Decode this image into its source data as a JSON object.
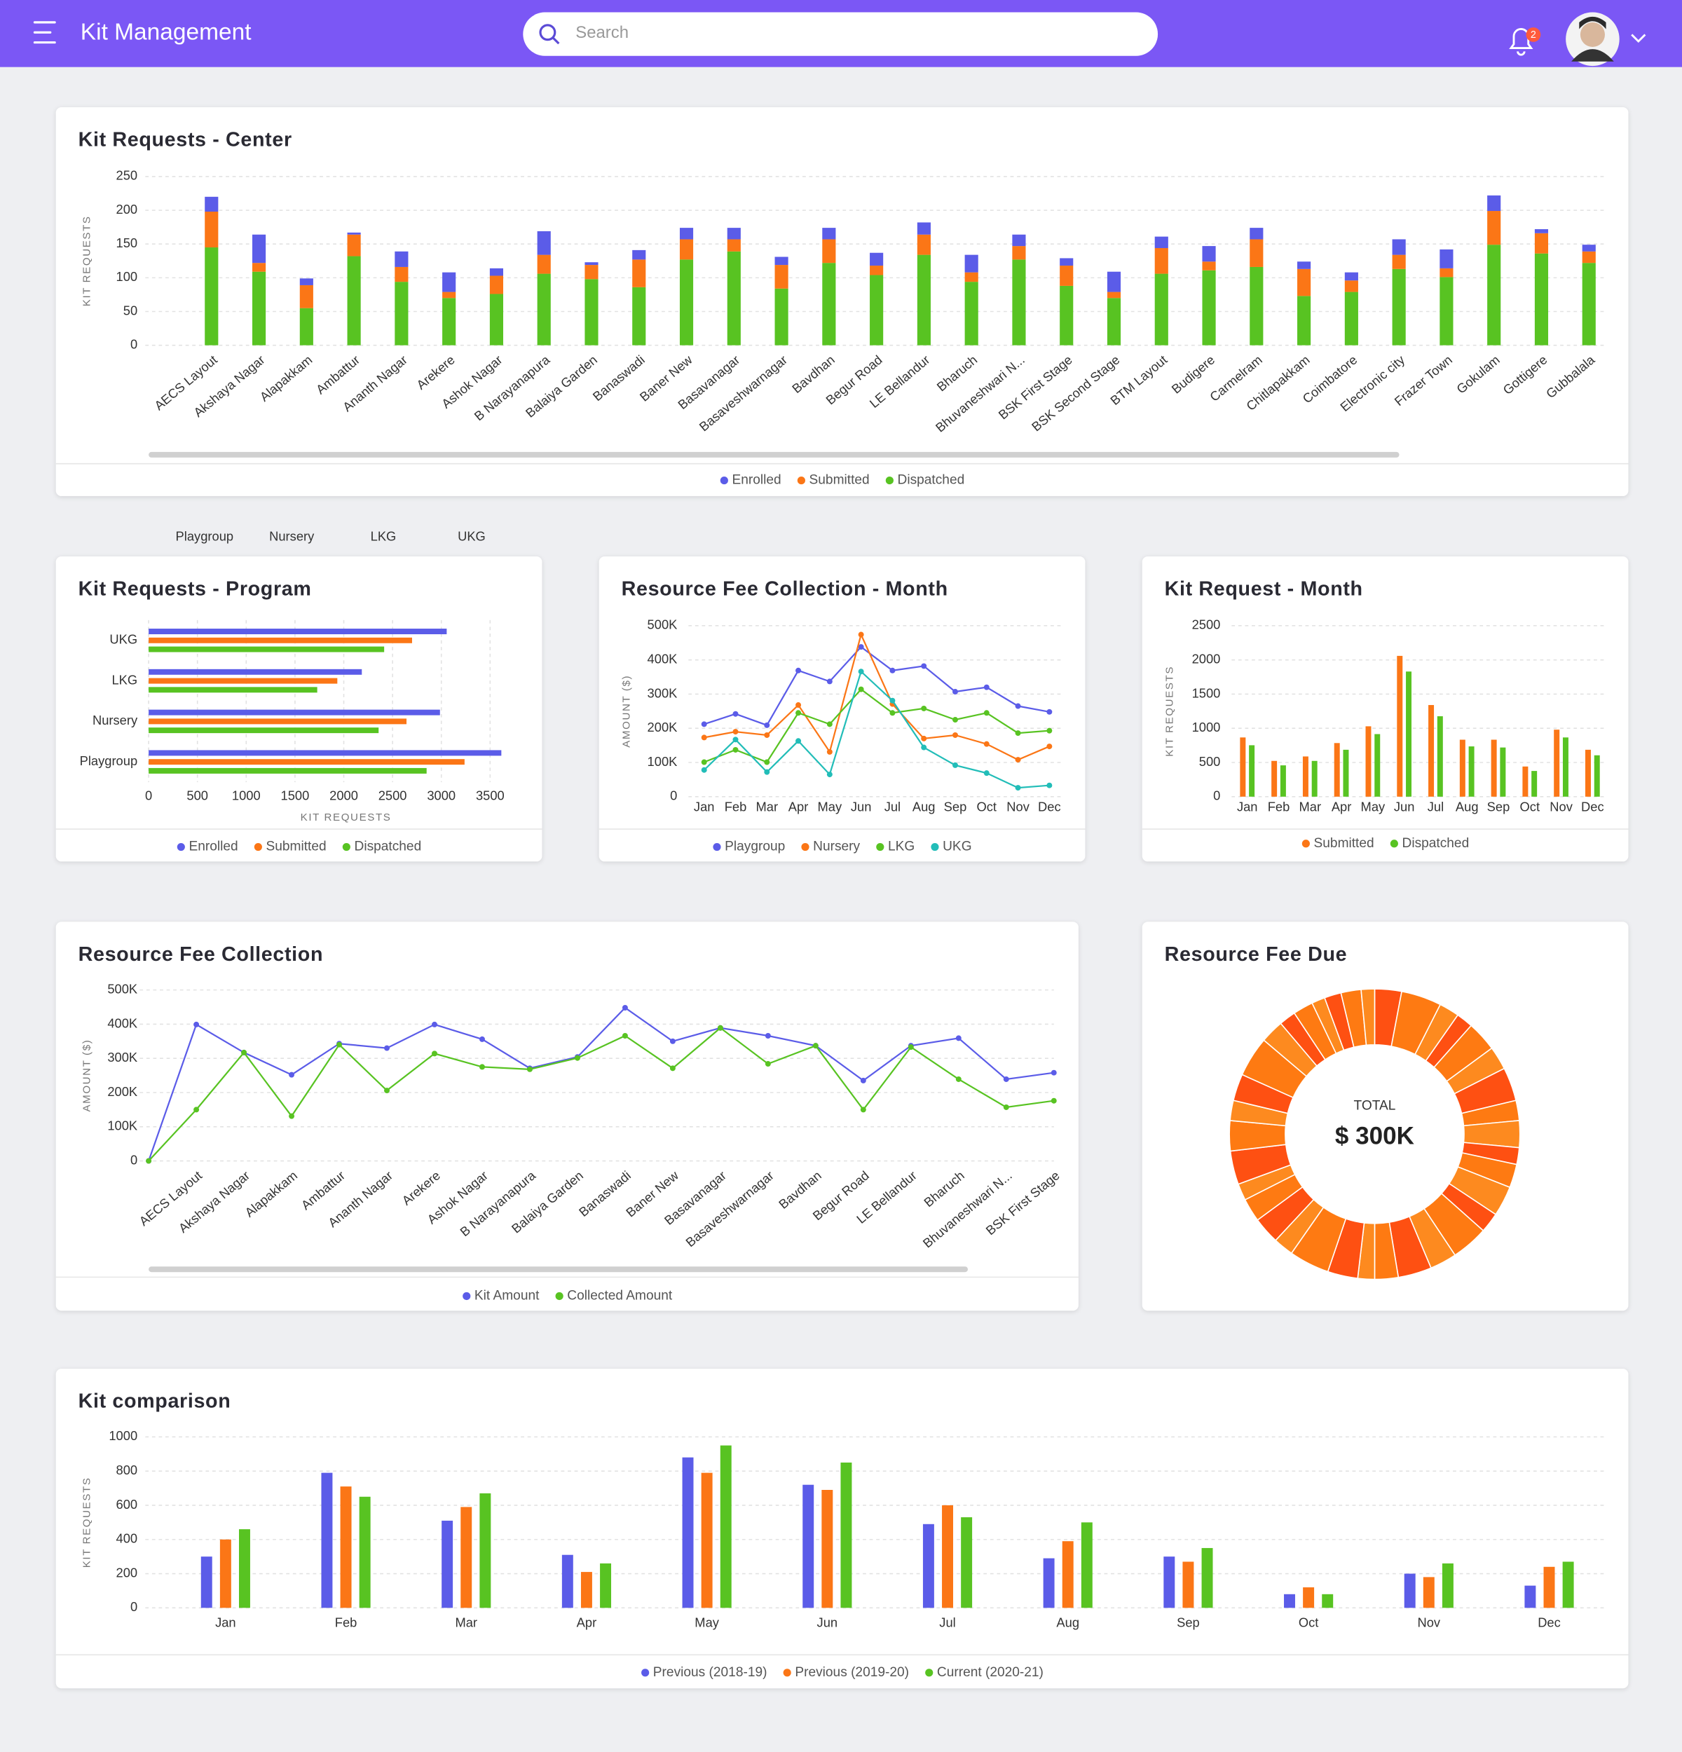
{
  "header": {
    "title": "Kit Management",
    "search_placeholder": "Search",
    "notification_count": 2
  },
  "stray_labels": [
    "Playgroup",
    "Nursery",
    "LKG",
    "UKG"
  ],
  "chart_data": [
    {
      "type": "stacked_bar",
      "title": "Kit Requests - Center",
      "ylabel": "KIT REQUESTS",
      "categories": [
        "AECS Layout",
        "Akshaya Nagar",
        "Alapakkam",
        "Ambattur",
        "Ananth Nagar",
        "Arekere",
        "Ashok Nagar",
        "B Narayanapura",
        "Balaiya Garden",
        "Banaswadi",
        "Baner New",
        "Basavanagar",
        "Basaveshwarnagar",
        "Bavdhan",
        "Begur Road",
        "LE Bellandur",
        "Bharuch",
        "Bhuvaneshwari N...",
        "BSK First Stage",
        "BSK Second Stage",
        "BTM Layout",
        "Budigere",
        "Carmelram",
        "Chitlapakkam",
        "Coimbatore",
        "Electronic city",
        "Frazer Town",
        "Gokulam",
        "Gottigere",
        "Gubbalala"
      ],
      "series": [
        {
          "name": "Enrolled",
          "color": "#5b5ce8",
          "values": [
            22,
            42,
            10,
            3,
            23,
            29,
            11,
            35,
            4,
            14,
            17,
            17,
            12,
            17,
            19,
            18,
            26,
            17,
            11,
            30,
            17,
            23,
            17,
            11,
            12,
            23,
            28,
            23,
            6,
            10
          ]
        },
        {
          "name": "Submitted",
          "color": "#fb7616",
          "values": [
            53,
            13,
            34,
            32,
            22,
            9,
            27,
            28,
            21,
            41,
            30,
            18,
            35,
            35,
            14,
            30,
            14,
            20,
            30,
            9,
            38,
            13,
            41,
            40,
            17,
            21,
            13,
            50,
            30,
            17
          ]
        },
        {
          "name": "Dispatched",
          "color": "#58c322",
          "values": [
            145,
            109,
            55,
            132,
            94,
            70,
            76,
            106,
            98,
            86,
            127,
            139,
            84,
            122,
            104,
            134,
            94,
            127,
            88,
            70,
            106,
            111,
            116,
            73,
            79,
            113,
            101,
            149,
            136,
            122
          ]
        }
      ],
      "ylim": [
        0,
        250
      ],
      "yticks": [
        0,
        50,
        100,
        150,
        200,
        250
      ],
      "grid": true,
      "legend": "bottom"
    },
    {
      "type": "hbar",
      "title": "Kit Requests - Program",
      "xlabel": "KIT REQUESTS",
      "categories": [
        "Playgroup",
        "Nursery",
        "LKG",
        "UKG"
      ],
      "series": [
        {
          "name": "Enrolled",
          "color": "#5b5ce8",
          "values": [
            3615,
            2986,
            2185,
            3055
          ]
        },
        {
          "name": "Submitted",
          "color": "#fb7616",
          "values": [
            3238,
            2643,
            1934,
            2700
          ]
        },
        {
          "name": "Dispatched",
          "color": "#58c322",
          "values": [
            2849,
            2357,
            1728,
            2414
          ]
        }
      ],
      "xlim": [
        0,
        3700
      ],
      "xticks": [
        0,
        500,
        1000,
        1500,
        2000,
        2500,
        3000,
        3500
      ],
      "grid": true,
      "legend": "bottom"
    },
    {
      "type": "line",
      "title": "Resource Fee Collection - Month",
      "ylabel": "AMOUNT ($)",
      "categories": [
        "Jan",
        "Feb",
        "Mar",
        "Apr",
        "May",
        "Jun",
        "Jul",
        "Aug",
        "Sep",
        "Oct",
        "Nov",
        "Dec"
      ],
      "series": [
        {
          "name": "Playgroup",
          "color": "#5b5ce8",
          "values": [
            212000,
            242000,
            209000,
            369000,
            337000,
            438000,
            369000,
            382000,
            307000,
            320000,
            265000,
            248000
          ]
        },
        {
          "name": "Nursery",
          "color": "#fb7616",
          "values": [
            173000,
            190000,
            180000,
            268000,
            131000,
            474000,
            271000,
            170000,
            180000,
            154000,
            108000,
            147000
          ]
        },
        {
          "name": "LKG",
          "color": "#58c322",
          "values": [
            101000,
            137000,
            101000,
            245000,
            212000,
            314000,
            245000,
            258000,
            225000,
            245000,
            186000,
            193000
          ]
        },
        {
          "name": "UKG",
          "color": "#22bdb8",
          "values": [
            78000,
            167000,
            72000,
            163000,
            65000,
            366000,
            281000,
            144000,
            92000,
            69000,
            26000,
            33000
          ]
        }
      ],
      "ylim": [
        0,
        500000
      ],
      "yticks": [
        0,
        {
          "value": 100000,
          "label": "100K"
        },
        {
          "value": 200000,
          "label": "200K"
        },
        {
          "value": 300000,
          "label": "300K"
        },
        {
          "value": 400000,
          "label": "400K"
        },
        {
          "value": 500000,
          "label": "500K"
        }
      ],
      "grid": true,
      "legend": "bottom"
    },
    {
      "type": "bar",
      "title": "Kit Request - Month",
      "ylabel": "KIT REQUESTS",
      "categories": [
        "Jan",
        "Feb",
        "Mar",
        "Apr",
        "May",
        "Jun",
        "Jul",
        "Aug",
        "Sep",
        "Oct",
        "Nov",
        "Dec"
      ],
      "series": [
        {
          "name": "Submitted",
          "color": "#fb7616",
          "values": [
            866,
            523,
            588,
            784,
            1029,
            2059,
            1340,
            833,
            833,
            441,
            980,
            686
          ]
        },
        {
          "name": "Dispatched",
          "color": "#58c322",
          "values": [
            752,
            458,
            523,
            686,
            915,
            1830,
            1176,
            735,
            719,
            376,
            866,
            605
          ]
        }
      ],
      "ylim": [
        0,
        2500
      ],
      "yticks": [
        0,
        500,
        1000,
        1500,
        2000,
        2500
      ],
      "grid": true,
      "legend": "bottom"
    },
    {
      "type": "line",
      "title": "Resource Fee Collection",
      "ylabel": "AMOUNT ($)",
      "categories": [
        null,
        "AECS Layout",
        "Akshaya Nagar",
        "Alapakkam",
        "Ambattur",
        "Ananth Nagar",
        "Arekere",
        "Ashok Nagar",
        "B Narayanapura",
        "Balaiya Garden",
        "Banaswadi",
        "Baner New",
        "Basavanagar",
        "Basaveshwarnagar",
        "Bavdhan",
        "Begur Road",
        "LE Bellandur",
        "Bharuch",
        "Bhuvaneshwari N...",
        "BSK First Stage"
      ],
      "series": [
        {
          "name": "Kit Amount",
          "color": "#5b5ce8",
          "values": [
            0,
            399000,
            317000,
            252000,
            343000,
            330000,
            399000,
            356000,
            271000,
            304000,
            448000,
            350000,
            389000,
            366000,
            337000,
            235000,
            337000,
            359000,
            239000,
            258000
          ]
        },
        {
          "name": "Collected Amount",
          "color": "#58c322",
          "values": [
            0,
            150000,
            317000,
            131000,
            340000,
            206000,
            314000,
            275000,
            268000,
            301000,
            366000,
            271000,
            389000,
            284000,
            337000,
            150000,
            333000,
            239000,
            157000,
            176000
          ]
        }
      ],
      "ylim": [
        0,
        500000
      ],
      "yticks": [
        0,
        {
          "value": 100000,
          "label": "100K"
        },
        {
          "value": 200000,
          "label": "200K"
        },
        {
          "value": 300000,
          "label": "300K"
        },
        {
          "value": 400000,
          "label": "400K"
        },
        {
          "value": 500000,
          "label": "500K"
        }
      ],
      "grid": true,
      "legend": "bottom"
    },
    {
      "type": "donut",
      "title": "Resource Fee Due",
      "center_label": "TOTAL",
      "total_label": "$ 300K",
      "values": [
        8,
        12,
        6,
        5,
        9,
        7,
        10,
        6,
        8,
        5,
        7,
        9,
        6,
        11,
        8,
        10,
        7,
        5,
        9,
        12,
        6,
        8,
        7,
        5,
        10,
        9,
        6,
        8,
        12,
        7,
        5,
        6,
        4,
        5,
        6,
        4
      ],
      "colors": [
        "#fe5012",
        "#fe7a12",
        "#fd8a1f"
      ]
    },
    {
      "type": "bar",
      "title": "Kit comparison",
      "ylabel": "KIT REQUESTS",
      "categories": [
        "Jan",
        "Feb",
        "Mar",
        "Apr",
        "May",
        "Jun",
        "Jul",
        "Aug",
        "Sep",
        "Oct",
        "Nov",
        "Dec"
      ],
      "series": [
        {
          "name": "Previous (2018-19)",
          "color": "#5b5ce8",
          "values": [
            300,
            790,
            510,
            310,
            880,
            720,
            490,
            290,
            300,
            80,
            200,
            130
          ]
        },
        {
          "name": "Previous (2019-20)",
          "color": "#fb7616",
          "values": [
            400,
            710,
            590,
            210,
            790,
            690,
            600,
            390,
            270,
            120,
            180,
            240
          ]
        },
        {
          "name": "Current (2020-21)",
          "color": "#58c322",
          "values": [
            460,
            650,
            670,
            260,
            950,
            850,
            530,
            500,
            350,
            80,
            260,
            270
          ]
        }
      ],
      "ylim": [
        0,
        1000
      ],
      "yticks": [
        0,
        200,
        400,
        600,
        800,
        1000
      ],
      "grid": true,
      "legend": "bottom"
    }
  ]
}
